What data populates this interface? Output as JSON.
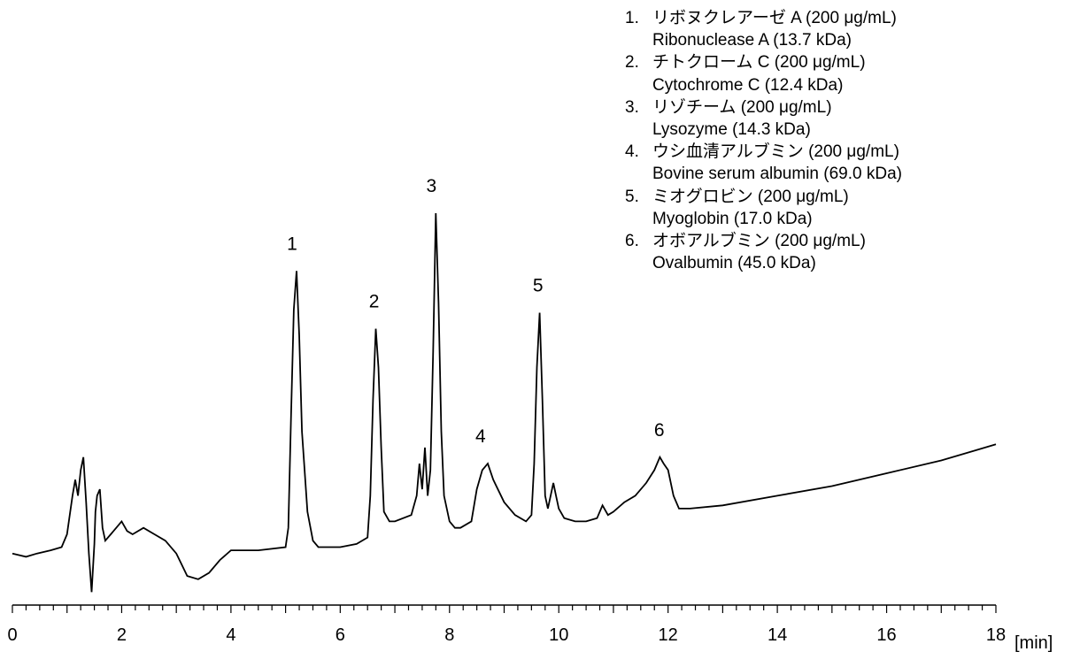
{
  "chart_data": {
    "type": "line",
    "xlabel": "[min]",
    "ylabel": "",
    "xlim": [
      0,
      18
    ],
    "xticks": [
      0,
      2,
      4,
      6,
      8,
      10,
      12,
      14,
      16,
      18
    ],
    "grid": false,
    "series": [
      {
        "x": [
          0,
          0.25,
          0.45,
          0.7,
          0.9,
          1.0,
          1.1,
          1.15,
          1.2,
          1.25,
          1.3,
          1.35,
          1.4,
          1.45,
          1.5,
          1.52,
          1.55,
          1.6,
          1.65,
          1.7,
          1.8,
          1.9,
          2.0,
          2.1,
          2.2,
          2.4,
          2.6,
          2.8,
          3.0,
          3.2,
          3.4,
          3.6,
          3.8,
          4.0,
          4.5,
          5.0,
          5.05,
          5.1,
          5.15,
          5.2,
          5.25,
          5.3,
          5.4,
          5.5,
          5.6,
          6.0,
          6.3,
          6.5,
          6.55,
          6.6,
          6.65,
          6.7,
          6.75,
          6.8,
          6.9,
          7.0,
          7.3,
          7.4,
          7.45,
          7.5,
          7.55,
          7.6,
          7.65,
          7.7,
          7.75,
          7.8,
          7.85,
          7.9,
          8.0,
          8.1,
          8.2,
          8.4,
          8.5,
          8.6,
          8.7,
          8.8,
          9.0,
          9.2,
          9.4,
          9.5,
          9.55,
          9.6,
          9.65,
          9.7,
          9.75,
          9.8,
          9.85,
          9.9,
          9.95,
          10.0,
          10.1,
          10.3,
          10.5,
          10.7,
          10.8,
          10.9,
          11.0,
          11.2,
          11.4,
          11.6,
          11.75,
          11.85,
          11.92,
          12.0,
          12.1,
          12.2,
          12.4,
          13.0,
          14.0,
          15.0,
          16.0,
          17.0,
          18.0
        ],
        "values": [
          0.02,
          0.01,
          0.02,
          0.03,
          0.04,
          0.08,
          0.2,
          0.25,
          0.2,
          0.28,
          0.32,
          0.18,
          0.02,
          -0.1,
          0.05,
          0.15,
          0.2,
          0.22,
          0.1,
          0.06,
          0.08,
          0.1,
          0.12,
          0.09,
          0.08,
          0.1,
          0.08,
          0.06,
          0.02,
          -0.05,
          -0.06,
          -0.04,
          0.0,
          0.03,
          0.03,
          0.04,
          0.1,
          0.45,
          0.78,
          0.9,
          0.7,
          0.4,
          0.15,
          0.06,
          0.04,
          0.04,
          0.05,
          0.07,
          0.2,
          0.5,
          0.72,
          0.6,
          0.35,
          0.15,
          0.12,
          0.12,
          0.14,
          0.2,
          0.3,
          0.22,
          0.35,
          0.2,
          0.28,
          0.65,
          1.08,
          0.8,
          0.4,
          0.2,
          0.12,
          0.1,
          0.1,
          0.12,
          0.22,
          0.28,
          0.3,
          0.25,
          0.18,
          0.14,
          0.12,
          0.14,
          0.3,
          0.6,
          0.77,
          0.5,
          0.2,
          0.16,
          0.2,
          0.24,
          0.2,
          0.16,
          0.13,
          0.12,
          0.12,
          0.13,
          0.17,
          0.14,
          0.15,
          0.18,
          0.2,
          0.24,
          0.28,
          0.32,
          0.3,
          0.28,
          0.2,
          0.16,
          0.16,
          0.17,
          0.2,
          0.23,
          0.27,
          0.31,
          0.36
        ]
      }
    ],
    "peaks": [
      {
        "label": "1",
        "x": 5.2
      },
      {
        "label": "2",
        "x": 6.7
      },
      {
        "label": "3",
        "x": 7.75
      },
      {
        "label": "4",
        "x": 8.65
      },
      {
        "label": "5",
        "x": 9.7
      },
      {
        "label": "6",
        "x": 11.92
      }
    ],
    "legend": [
      {
        "num": "1.",
        "ja": "リボヌクレアーゼ A (200 μg/mL)",
        "en": "Ribonuclease A (13.7 kDa)"
      },
      {
        "num": "2.",
        "ja": "チトクローム C (200 μg/mL)",
        "en": "Cytochrome C (12.4 kDa)"
      },
      {
        "num": "3.",
        "ja": "リゾチーム (200 μg/mL)",
        "en": "Lysozyme (14.3 kDa)"
      },
      {
        "num": "4.",
        "ja": "ウシ血清アルブミン (200 μg/mL)",
        "en": "Bovine serum albumin (69.0 kDa)"
      },
      {
        "num": "5.",
        "ja": "ミオグロビン (200 μg/mL)",
        "en": "Myoglobin (17.0 kDa)"
      },
      {
        "num": "6.",
        "ja": "オボアルブミン (200 μg/mL)",
        "en": "Ovalbumin (45.0 kDa)"
      }
    ],
    "legend_placement": "top-right",
    "line_color": "#000000"
  }
}
